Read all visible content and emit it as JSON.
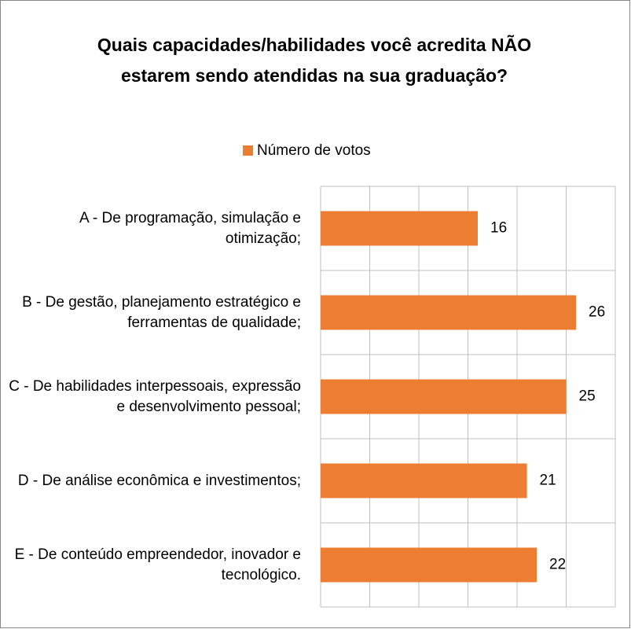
{
  "chart_data": {
    "type": "bar",
    "orientation": "horizontal",
    "title": "Quais capacidades/habilidades você acredita NÃO estarem sendo atendidas na sua graduação?",
    "categories": [
      "A - De programação, simulação e otimização;",
      "B - De gestão, planejamento estratégico e ferramentas de qualidade;",
      "C - De habilidades interpessoais, expressão e desenvolvimento pessoal;",
      "D - De análise econômica e investimentos;",
      "E - De conteúdo empreendedor, inovador e tecnológico."
    ],
    "series": [
      {
        "name": "Número de votos",
        "color": "#ed7d31",
        "values": [
          16,
          26,
          25,
          21,
          22
        ]
      }
    ],
    "xlim": [
      0,
      30
    ],
    "xticks": [
      0,
      5,
      10,
      15,
      20,
      25,
      30
    ],
    "grid": true,
    "legend": "top"
  }
}
